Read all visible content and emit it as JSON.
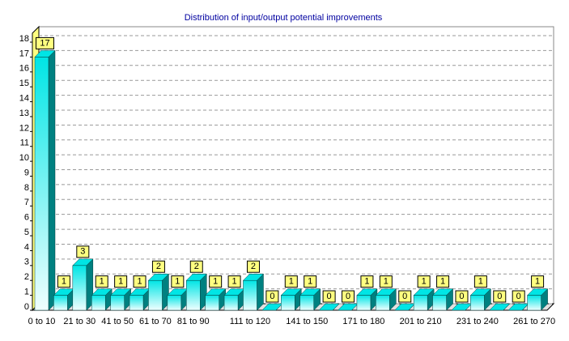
{
  "chart_data": {
    "type": "bar3d",
    "title": "Distribution of input/output potential improvements",
    "categories": [
      "0 to 10",
      null,
      "21 to 30",
      null,
      "41 to 50",
      null,
      "61 to 70",
      null,
      "81 to 90",
      null,
      null,
      "111 to 120",
      null,
      null,
      "141 to 150",
      null,
      null,
      "171 to 180",
      null,
      null,
      "201 to 210",
      null,
      null,
      "231 to 240",
      null,
      null,
      "261 to 270"
    ],
    "values": [
      17,
      1,
      3,
      1,
      1,
      1,
      2,
      1,
      2,
      1,
      1,
      2,
      0,
      1,
      1,
      0,
      0,
      1,
      1,
      0,
      1,
      1,
      0,
      1,
      0,
      0,
      1
    ],
    "color": "#00e5e5",
    "ylim": [
      0,
      18.6
    ],
    "yticks": [
      0,
      1,
      2,
      3,
      4,
      5,
      6,
      7,
      8,
      9,
      10,
      11,
      12,
      13,
      14,
      15,
      16,
      17,
      18
    ],
    "grid": true
  }
}
